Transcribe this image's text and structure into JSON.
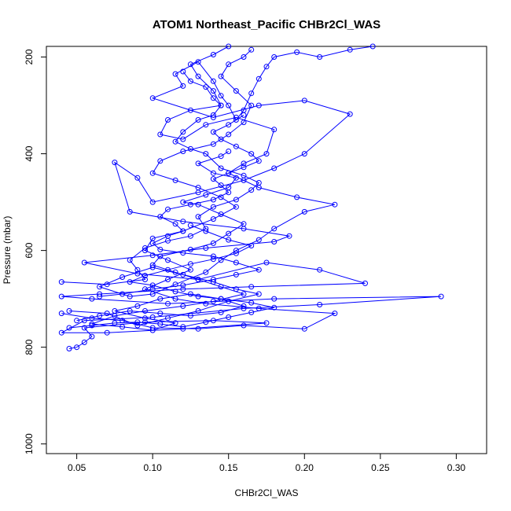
{
  "chart_data": {
    "type": "scatter",
    "title": "ATOM1 Northeast_Pacific CHBr2Cl_WAS",
    "xlabel": "CHBr2Cl_WAS",
    "ylabel": "Pressure (mbar)",
    "xlim": [
      0.03,
      0.32
    ],
    "ylim": [
      1020,
      178
    ],
    "y_axis_inverted": true,
    "xticks": [
      "0.05",
      "0.10",
      "0.15",
      "0.20",
      "0.25",
      "0.30"
    ],
    "yticks": [
      "200",
      "400",
      "600",
      "800",
      "1000"
    ],
    "grid": false,
    "legend": "none",
    "colors": {
      "series": "#0000ff"
    },
    "series": [
      {
        "mode": "lines+markers",
        "points": [
          [
            0.045,
            803
          ],
          [
            0.05,
            800
          ],
          [
            0.055,
            790
          ],
          [
            0.06,
            778
          ],
          [
            0.055,
            760
          ],
          [
            0.095,
            748
          ],
          [
            0.14,
            745
          ],
          [
            0.175,
            750
          ],
          [
            0.12,
            762
          ],
          [
            0.07,
            770
          ],
          [
            0.04,
            770
          ],
          [
            0.055,
            745
          ],
          [
            0.1,
            738
          ],
          [
            0.16,
            720
          ],
          [
            0.21,
            712
          ],
          [
            0.29,
            695
          ],
          [
            0.18,
            700
          ],
          [
            0.11,
            710
          ],
          [
            0.06,
            700
          ],
          [
            0.04,
            695
          ],
          [
            0.065,
            690
          ],
          [
            0.12,
            680
          ],
          [
            0.165,
            675
          ],
          [
            0.24,
            668
          ],
          [
            0.21,
            640
          ],
          [
            0.175,
            625
          ],
          [
            0.13,
            660
          ],
          [
            0.09,
            648
          ],
          [
            0.055,
            625
          ],
          [
            0.1,
            610
          ],
          [
            0.135,
            595
          ],
          [
            0.18,
            582
          ],
          [
            0.19,
            570
          ],
          [
            0.16,
            555
          ],
          [
            0.12,
            540
          ],
          [
            0.085,
            520
          ],
          [
            0.075,
            418
          ],
          [
            0.09,
            450
          ],
          [
            0.1,
            500
          ],
          [
            0.13,
            480
          ],
          [
            0.16,
            455
          ],
          [
            0.18,
            430
          ],
          [
            0.2,
            400
          ],
          [
            0.23,
            318
          ],
          [
            0.2,
            290
          ],
          [
            0.17,
            300
          ],
          [
            0.14,
            325
          ],
          [
            0.1,
            285
          ],
          [
            0.12,
            260
          ],
          [
            0.115,
            235
          ],
          [
            0.13,
            210
          ],
          [
            0.14,
            250
          ],
          [
            0.145,
            280
          ],
          [
            0.15,
            300
          ],
          [
            0.155,
            330
          ],
          [
            0.16,
            310
          ],
          [
            0.165,
            275
          ],
          [
            0.17,
            245
          ],
          [
            0.175,
            220
          ],
          [
            0.18,
            200
          ],
          [
            0.195,
            190
          ],
          [
            0.21,
            200
          ],
          [
            0.23,
            185
          ],
          [
            0.245,
            178
          ]
        ]
      },
      {
        "mode": "lines+markers",
        "points": [
          [
            0.045,
            725
          ],
          [
            0.07,
            730
          ],
          [
            0.09,
            755
          ],
          [
            0.11,
            740
          ],
          [
            0.13,
            725
          ],
          [
            0.15,
            705
          ],
          [
            0.17,
            690
          ],
          [
            0.155,
            680
          ],
          [
            0.14,
            665
          ],
          [
            0.12,
            650
          ],
          [
            0.1,
            635
          ],
          [
            0.08,
            655
          ],
          [
            0.065,
            675
          ],
          [
            0.085,
            695
          ],
          [
            0.1,
            690
          ],
          [
            0.115,
            670
          ],
          [
            0.135,
            645
          ],
          [
            0.145,
            620
          ],
          [
            0.155,
            600
          ],
          [
            0.17,
            578
          ],
          [
            0.18,
            555
          ],
          [
            0.2,
            520
          ],
          [
            0.22,
            505
          ],
          [
            0.195,
            490
          ],
          [
            0.17,
            470
          ],
          [
            0.15,
            440
          ],
          [
            0.16,
            420
          ],
          [
            0.175,
            400
          ],
          [
            0.18,
            350
          ],
          [
            0.155,
            325
          ],
          [
            0.135,
            340
          ],
          [
            0.12,
            370
          ],
          [
            0.105,
            360
          ],
          [
            0.11,
            330
          ],
          [
            0.125,
            310
          ],
          [
            0.145,
            300
          ],
          [
            0.14,
            270
          ],
          [
            0.13,
            240
          ],
          [
            0.125,
            215
          ],
          [
            0.14,
            195
          ],
          [
            0.15,
            178
          ]
        ]
      },
      {
        "mode": "lines+markers",
        "points": [
          [
            0.04,
            730
          ],
          [
            0.06,
            740
          ],
          [
            0.08,
            745
          ],
          [
            0.1,
            760
          ],
          [
            0.13,
            762
          ],
          [
            0.16,
            755
          ],
          [
            0.2,
            762
          ],
          [
            0.22,
            730
          ],
          [
            0.17,
            720
          ],
          [
            0.135,
            710
          ],
          [
            0.115,
            700
          ],
          [
            0.095,
            680
          ],
          [
            0.11,
            660
          ],
          [
            0.125,
            640
          ],
          [
            0.11,
            620
          ],
          [
            0.095,
            600
          ],
          [
            0.1,
            575
          ],
          [
            0.12,
            560
          ],
          [
            0.14,
            535
          ],
          [
            0.155,
            510
          ],
          [
            0.145,
            490
          ],
          [
            0.13,
            470
          ],
          [
            0.115,
            455
          ],
          [
            0.1,
            440
          ],
          [
            0.105,
            415
          ],
          [
            0.12,
            395
          ],
          [
            0.14,
            380
          ],
          [
            0.15,
            360
          ],
          [
            0.16,
            335
          ],
          [
            0.165,
            300
          ],
          [
            0.155,
            270
          ],
          [
            0.145,
            240
          ],
          [
            0.15,
            215
          ],
          [
            0.16,
            200
          ],
          [
            0.165,
            185
          ]
        ]
      },
      {
        "mode": "lines+markers",
        "points": [
          [
            0.05,
            745
          ],
          [
            0.065,
            735
          ],
          [
            0.085,
            725
          ],
          [
            0.105,
            730
          ],
          [
            0.125,
            735
          ],
          [
            0.145,
            728
          ],
          [
            0.16,
            715
          ],
          [
            0.145,
            700
          ],
          [
            0.125,
            690
          ],
          [
            0.105,
            700
          ],
          [
            0.09,
            715
          ],
          [
            0.075,
            725
          ],
          [
            0.095,
            740
          ],
          [
            0.115,
            750
          ],
          [
            0.1,
            765
          ],
          [
            0.08,
            758
          ],
          [
            0.06,
            752
          ],
          [
            0.075,
            735
          ],
          [
            0.095,
            725
          ],
          [
            0.12,
            715
          ],
          [
            0.14,
            705
          ],
          [
            0.16,
            690
          ],
          [
            0.145,
            675
          ],
          [
            0.13,
            660
          ],
          [
            0.115,
            645
          ],
          [
            0.1,
            630
          ],
          [
            0.105,
            612
          ],
          [
            0.125,
            598
          ],
          [
            0.14,
            585
          ],
          [
            0.15,
            565
          ],
          [
            0.16,
            545
          ],
          [
            0.145,
            525
          ],
          [
            0.13,
            505
          ],
          [
            0.12,
            500
          ],
          [
            0.135,
            485
          ],
          [
            0.15,
            470
          ],
          [
            0.155,
            450
          ],
          [
            0.14,
            440
          ],
          [
            0.13,
            420
          ],
          [
            0.145,
            405
          ],
          [
            0.15,
            395
          ]
        ]
      },
      {
        "mode": "lines+markers",
        "points": [
          [
            0.04,
            665
          ],
          [
            0.07,
            670
          ],
          [
            0.095,
            660
          ],
          [
            0.09,
            640
          ],
          [
            0.085,
            620
          ],
          [
            0.095,
            595
          ],
          [
            0.11,
            580
          ],
          [
            0.125,
            570
          ],
          [
            0.135,
            555
          ],
          [
            0.13,
            530
          ],
          [
            0.14,
            510
          ],
          [
            0.155,
            495
          ],
          [
            0.165,
            475
          ],
          [
            0.17,
            460
          ],
          [
            0.16,
            445
          ],
          [
            0.145,
            430
          ],
          [
            0.135,
            400
          ],
          [
            0.125,
            390
          ],
          [
            0.115,
            375
          ],
          [
            0.12,
            355
          ],
          [
            0.13,
            330
          ],
          [
            0.14,
            320
          ],
          [
            0.145,
            300
          ],
          [
            0.14,
            285
          ],
          [
            0.135,
            262
          ],
          [
            0.125,
            250
          ],
          [
            0.12,
            230
          ]
        ]
      },
      {
        "mode": "lines+markers",
        "points": [
          [
            0.065,
            695
          ],
          [
            0.08,
            690
          ],
          [
            0.1,
            680
          ],
          [
            0.12,
            672
          ],
          [
            0.14,
            660
          ],
          [
            0.155,
            650
          ],
          [
            0.17,
            640
          ],
          [
            0.155,
            625
          ],
          [
            0.14,
            612
          ],
          [
            0.12,
            605
          ],
          [
            0.105,
            598
          ],
          [
            0.1,
            585
          ],
          [
            0.11,
            570
          ],
          [
            0.12,
            560
          ],
          [
            0.115,
            545
          ],
          [
            0.105,
            530
          ],
          [
            0.11,
            515
          ],
          [
            0.125,
            505
          ],
          [
            0.14,
            495
          ],
          [
            0.15,
            480
          ],
          [
            0.145,
            465
          ],
          [
            0.14,
            452
          ],
          [
            0.15,
            440
          ],
          [
            0.16,
            428
          ],
          [
            0.17,
            415
          ],
          [
            0.165,
            400
          ],
          [
            0.155,
            385
          ],
          [
            0.145,
            370
          ],
          [
            0.14,
            355
          ],
          [
            0.15,
            340
          ],
          [
            0.16,
            320
          ]
        ]
      },
      {
        "mode": "lines+markers",
        "points": [
          [
            0.045,
            760
          ],
          [
            0.06,
            755
          ],
          [
            0.075,
            750
          ],
          [
            0.09,
            748
          ],
          [
            0.105,
            752
          ],
          [
            0.12,
            758
          ],
          [
            0.135,
            748
          ],
          [
            0.15,
            738
          ],
          [
            0.165,
            728
          ],
          [
            0.18,
            718
          ],
          [
            0.165,
            708
          ],
          [
            0.145,
            700
          ],
          [
            0.13,
            695
          ],
          [
            0.115,
            685
          ],
          [
            0.1,
            672
          ],
          [
            0.085,
            665
          ],
          [
            0.095,
            652
          ],
          [
            0.11,
            640
          ],
          [
            0.125,
            628
          ],
          [
            0.14,
            618
          ],
          [
            0.155,
            606
          ],
          [
            0.165,
            590
          ],
          [
            0.15,
            578
          ],
          [
            0.135,
            560
          ],
          [
            0.125,
            548
          ]
        ]
      }
    ]
  }
}
